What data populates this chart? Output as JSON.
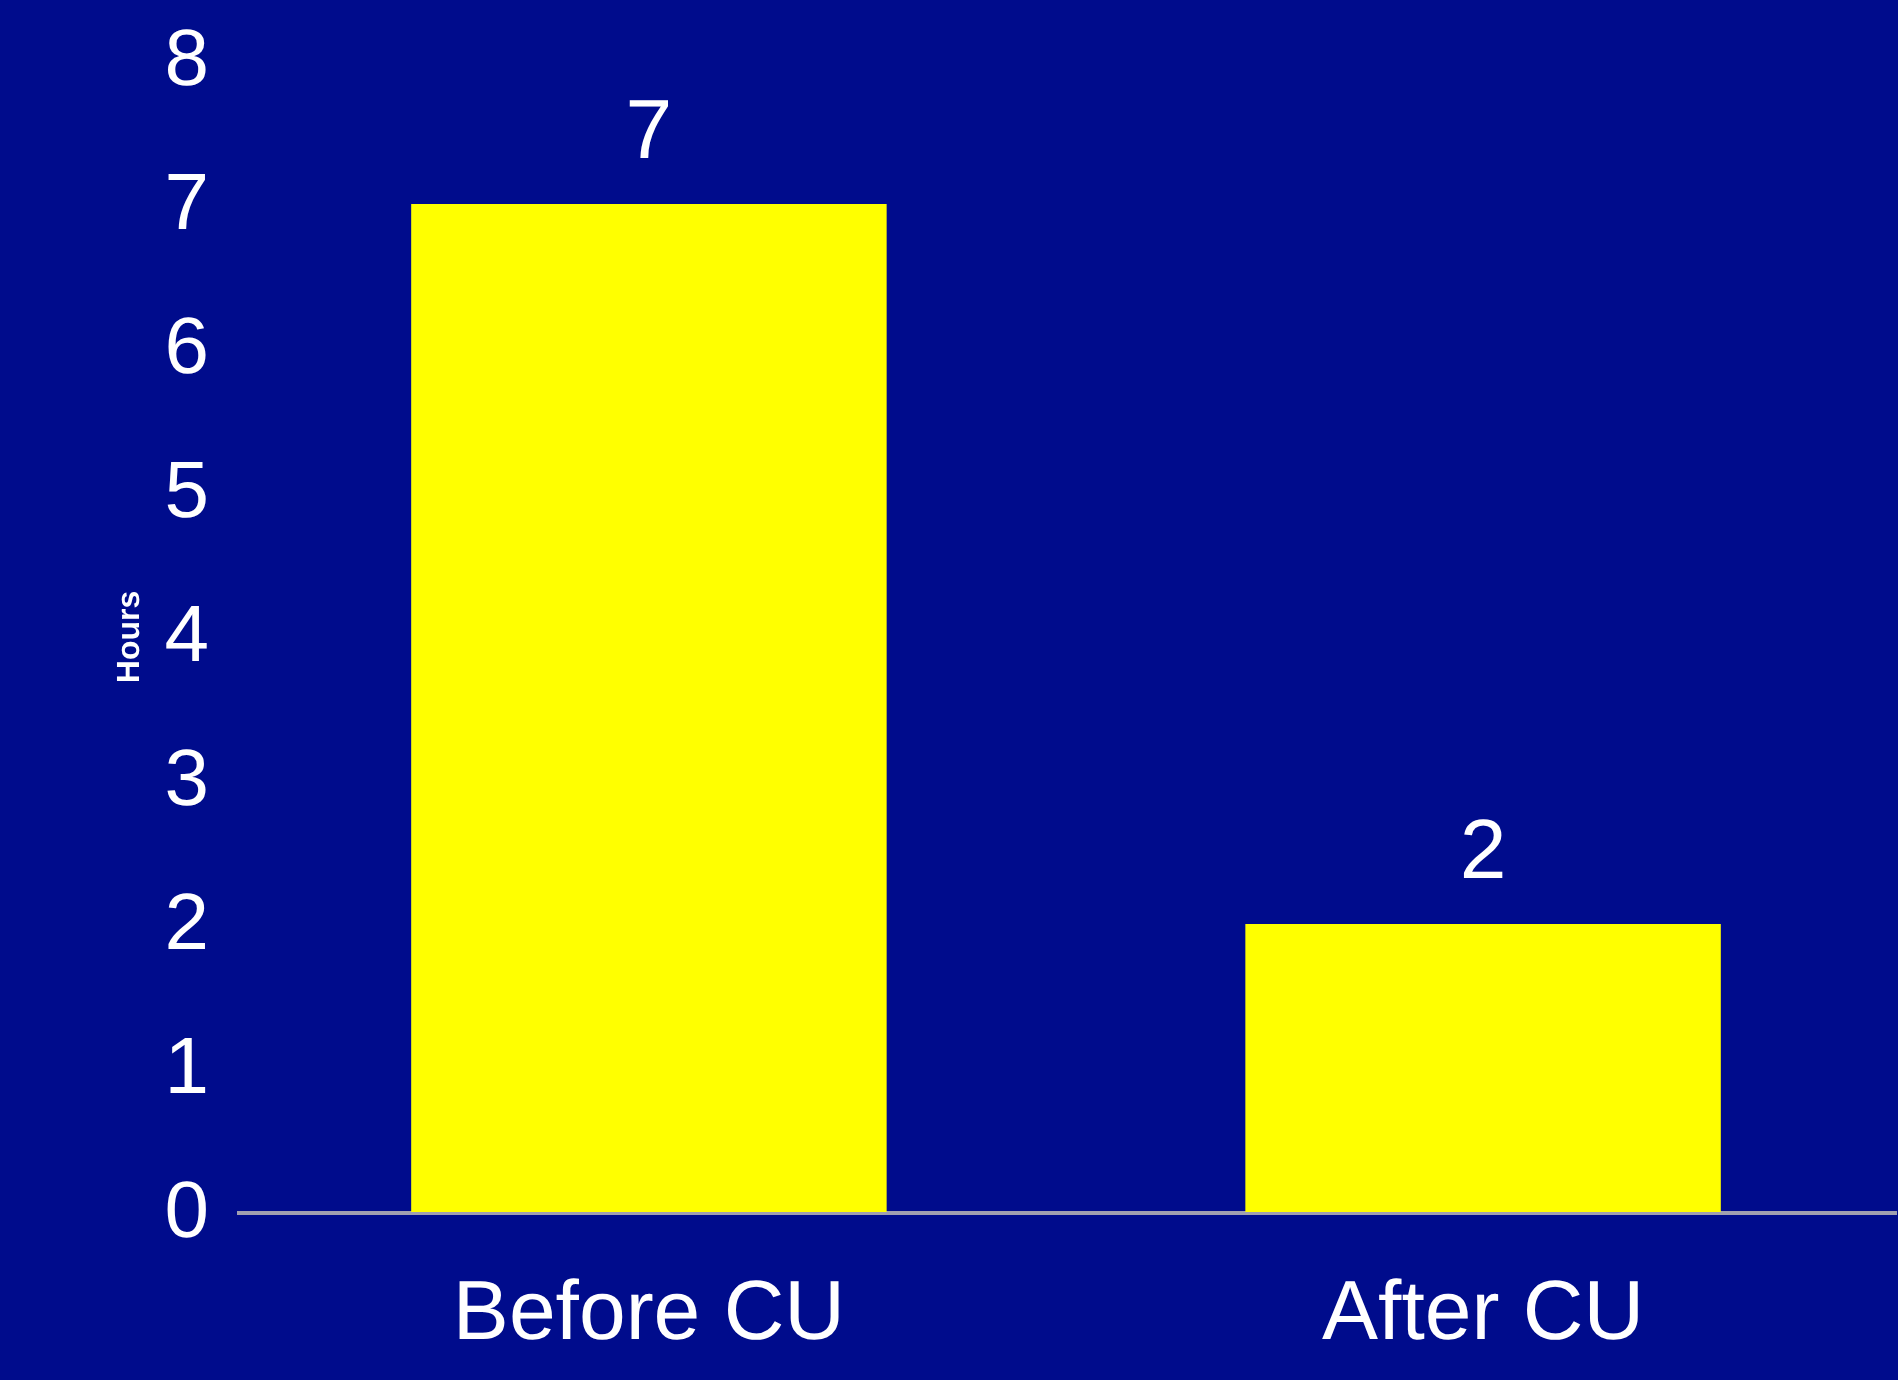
{
  "chart_data": {
    "type": "bar",
    "ylabel": "Hours",
    "categories": [
      "Before CU",
      "After CU"
    ],
    "values": [
      7,
      2
    ],
    "color": "#ffff00",
    "ylim": [
      0,
      8
    ],
    "yticks": [
      0,
      1,
      2,
      3,
      4,
      5,
      6,
      7,
      8
    ],
    "data_labels": true,
    "grid": false
  }
}
